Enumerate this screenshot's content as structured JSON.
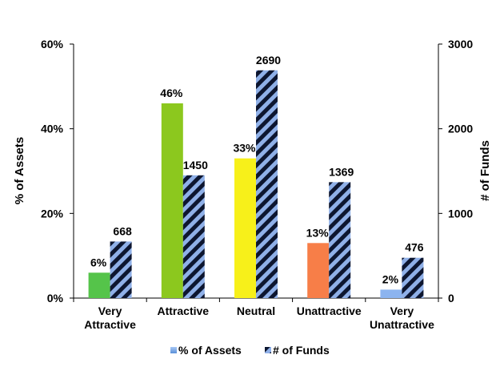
{
  "chart_data": {
    "type": "bar",
    "categories": [
      [
        "Very",
        "Attractive"
      ],
      [
        "Attractive"
      ],
      [
        "Neutral"
      ],
      [
        "Unattractive"
      ],
      [
        "Very",
        "Unattractive"
      ]
    ],
    "series": [
      {
        "name": "% of Assets",
        "axis": "left",
        "values": [
          6,
          46,
          33,
          13,
          2
        ],
        "labels": [
          "6%",
          "46%",
          "33%",
          "13%",
          "2%"
        ],
        "colors": [
          "#55c44a",
          "#8cc81e",
          "#f7f01a",
          "#f77e48",
          "#8cb4ef"
        ]
      },
      {
        "name": "# of Funds",
        "axis": "right",
        "values": [
          668,
          1450,
          2690,
          1369,
          476
        ],
        "labels": [
          "668",
          "1450",
          "2690",
          "1369",
          "476"
        ],
        "pattern": "diagonal-stripes",
        "colors": [
          "#8fb0e8",
          "#0d1630"
        ]
      }
    ],
    "ylabel": "% of Assets",
    "ylim": [
      0,
      60
    ],
    "yticks": [
      "0%",
      "20%",
      "40%",
      "60%"
    ],
    "y2label": "# of Funds",
    "y2lim": [
      0,
      3000
    ],
    "y2ticks": [
      "0",
      "1000",
      "2000",
      "3000"
    ],
    "grid": false,
    "legend": "bottom"
  }
}
